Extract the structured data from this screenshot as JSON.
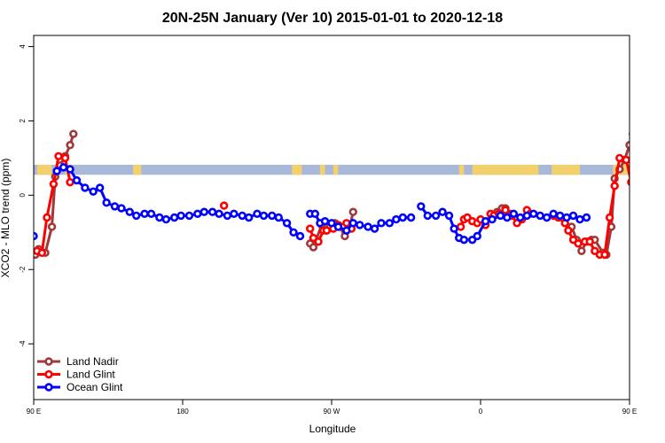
{
  "chart_data": {
    "type": "line",
    "title": "20N-25N January (Ver 10)   2015-01-01 to 2020-12-18",
    "xlabel": "Longitude",
    "ylabel": "XCO2 - MLO trend (ppm)",
    "xlim": [
      90,
      450
    ],
    "ylim": [
      -5.5,
      4.3
    ],
    "x_ticks": [
      {
        "value": 90,
        "label": "90 E"
      },
      {
        "value": 180,
        "label": "180"
      },
      {
        "value": 270,
        "label": "90 W"
      },
      {
        "value": 360,
        "label": "0"
      },
      {
        "value": 450,
        "label": "90 E"
      },
      {
        "value": 540,
        "label": "180"
      }
    ],
    "y_ticks": [
      {
        "value": -4,
        "label": "-4"
      },
      {
        "value": -2,
        "label": "-2"
      },
      {
        "value": 0,
        "label": "0"
      },
      {
        "value": 2,
        "label": "2"
      },
      {
        "value": 4,
        "label": "4"
      }
    ],
    "land_band": {
      "y_min": 0.55,
      "y_max": 0.82,
      "ocean_color": "#a8b8d8",
      "land_color": "#f2d06b"
    },
    "legend_position": "bottom-left",
    "series": [
      {
        "name": "Land Nadir",
        "color": "#a0393a",
        "segments": [
          [
            [
              91,
              -1.6
            ],
            [
              93,
              -1.45
            ],
            [
              97,
              -1.55
            ],
            [
              101,
              -0.85
            ],
            [
              103,
              0.5
            ],
            [
              106,
              0.8
            ],
            [
              109,
              1.05
            ],
            [
              112,
              1.35
            ],
            [
              114,
              1.65
            ]
          ],
          [
            [
              257,
              -1.3
            ],
            [
              259,
              -1.4
            ],
            [
              264,
              -0.8
            ],
            [
              267,
              -0.95
            ],
            [
              269,
              -0.85
            ],
            [
              272,
              -0.75
            ],
            [
              275,
              -0.85
            ],
            [
              278,
              -1.1
            ],
            [
              281,
              -0.85
            ],
            [
              283,
              -0.45
            ]
          ],
          [
            [
              367,
              -0.55
            ],
            [
              370,
              -0.45
            ],
            [
              373,
              -0.35
            ],
            [
              375,
              -0.35
            ],
            [
              378,
              -0.5
            ]
          ],
          [
            [
              415,
              -0.85
            ],
            [
              418,
              -1.2
            ],
            [
              421,
              -1.5
            ],
            [
              424,
              -1.25
            ],
            [
              427,
              -1.2
            ],
            [
              429,
              -1.2
            ],
            [
              434,
              -1.55
            ],
            [
              436,
              -1.6
            ],
            [
              439,
              -0.85
            ],
            [
              441,
              0.45
            ],
            [
              444,
              0.7
            ],
            [
              447,
              0.95
            ],
            [
              450,
              1.35
            ],
            [
              452,
              1.65
            ]
          ]
        ]
      },
      {
        "name": "Land Glint",
        "color": "#ff0000",
        "segments": [
          [
            [
              92,
              -1.5
            ],
            [
              95,
              -1.55
            ],
            [
              98,
              -0.6
            ],
            [
              102,
              0.3
            ],
            [
              105,
              1.05
            ],
            [
              109,
              1.0
            ],
            [
              112,
              0.35
            ]
          ],
          [
            [
              205,
              -0.28
            ]
          ],
          [
            [
              257,
              -0.9
            ],
            [
              259,
              -1.15
            ],
            [
              262,
              -1.25
            ],
            [
              265,
              -0.95
            ],
            [
              267,
              -0.95
            ],
            [
              271,
              -0.9
            ],
            [
              274,
              -0.8
            ],
            [
              277,
              -0.85
            ],
            [
              279,
              -0.75
            ],
            [
              282,
              -0.9
            ]
          ],
          [
            [
              348,
              -0.85
            ],
            [
              350,
              -0.65
            ],
            [
              352,
              -0.6
            ],
            [
              355,
              -0.7
            ],
            [
              358,
              -0.75
            ],
            [
              360,
              -0.65
            ],
            [
              363,
              -0.8
            ],
            [
              366,
              -0.5
            ],
            [
              368,
              -0.55
            ],
            [
              371,
              -0.5
            ],
            [
              375,
              -0.4
            ],
            [
              379,
              -0.55
            ],
            [
              382,
              -0.75
            ],
            [
              385,
              -0.65
            ],
            [
              388,
              -0.4
            ],
            [
              390,
              -0.5
            ]
          ],
          [
            [
              404,
              -0.55
            ],
            [
              407,
              -0.6
            ],
            [
              411,
              -0.75
            ],
            [
              413,
              -0.95
            ],
            [
              416,
              -1.2
            ],
            [
              419,
              -1.3
            ],
            [
              423,
              -1.25
            ],
            [
              426,
              -1.25
            ],
            [
              429,
              -1.5
            ],
            [
              432,
              -1.6
            ],
            [
              435,
              -1.6
            ],
            [
              438,
              -0.6
            ],
            [
              441,
              0.25
            ],
            [
              444,
              1.0
            ],
            [
              448,
              0.95
            ],
            [
              451,
              0.35
            ]
          ]
        ]
      },
      {
        "name": "Ocean Glint",
        "color": "#0000ff",
        "segments": [
          [
            [
              90,
              -1.1
            ]
          ],
          [
            [
              104,
              0.65
            ],
            [
              108,
              0.75
            ],
            [
              112,
              0.7
            ],
            [
              116,
              0.4
            ],
            [
              121,
              0.2
            ],
            [
              126,
              0.1
            ],
            [
              130,
              0.2
            ],
            [
              134,
              -0.2
            ],
            [
              139,
              -0.3
            ],
            [
              143,
              -0.35
            ],
            [
              148,
              -0.45
            ],
            [
              152,
              -0.55
            ],
            [
              157,
              -0.5
            ],
            [
              161,
              -0.5
            ],
            [
              166,
              -0.6
            ],
            [
              170,
              -0.65
            ],
            [
              175,
              -0.6
            ],
            [
              179,
              -0.55
            ],
            [
              184,
              -0.55
            ],
            [
              189,
              -0.5
            ],
            [
              193,
              -0.45
            ],
            [
              198,
              -0.45
            ],
            [
              202,
              -0.5
            ],
            [
              207,
              -0.55
            ],
            [
              211,
              -0.5
            ],
            [
              216,
              -0.55
            ],
            [
              220,
              -0.6
            ],
            [
              225,
              -0.5
            ],
            [
              229,
              -0.55
            ],
            [
              234,
              -0.55
            ],
            [
              238,
              -0.6
            ],
            [
              243,
              -0.75
            ],
            [
              247,
              -1.0
            ],
            [
              251,
              -1.1
            ]
          ],
          [
            [
              257,
              -0.5
            ],
            [
              260,
              -0.5
            ],
            [
              263,
              -0.75
            ],
            [
              266,
              -0.7
            ],
            [
              270,
              -0.75
            ],
            [
              274,
              -0.85
            ],
            [
              279,
              -0.95
            ],
            [
              283,
              -0.75
            ],
            [
              287,
              -0.8
            ],
            [
              292,
              -0.85
            ],
            [
              296,
              -0.9
            ],
            [
              300,
              -0.75
            ],
            [
              305,
              -0.75
            ],
            [
              309,
              -0.65
            ],
            [
              313,
              -0.6
            ],
            [
              318,
              -0.6
            ]
          ],
          [
            [
              324,
              -0.3
            ],
            [
              328,
              -0.55
            ],
            [
              333,
              -0.55
            ],
            [
              337,
              -0.45
            ],
            [
              341,
              -0.55
            ],
            [
              344,
              -0.9
            ],
            [
              347,
              -1.15
            ],
            [
              350,
              -1.2
            ]
          ],
          [
            [
              355,
              -1.2
            ],
            [
              358,
              -1.1
            ],
            [
              363,
              -0.7
            ],
            [
              367,
              -0.65
            ],
            [
              372,
              -0.55
            ],
            [
              376,
              -0.6
            ],
            [
              380,
              -0.5
            ],
            [
              384,
              -0.6
            ],
            [
              388,
              -0.55
            ],
            [
              392,
              -0.5
            ],
            [
              396,
              -0.55
            ],
            [
              400,
              -0.6
            ],
            [
              404,
              -0.5
            ],
            [
              408,
              -0.55
            ],
            [
              412,
              -0.6
            ],
            [
              416,
              -0.55
            ],
            [
              420,
              -0.65
            ],
            [
              424,
              -0.6
            ]
          ]
        ]
      }
    ]
  }
}
